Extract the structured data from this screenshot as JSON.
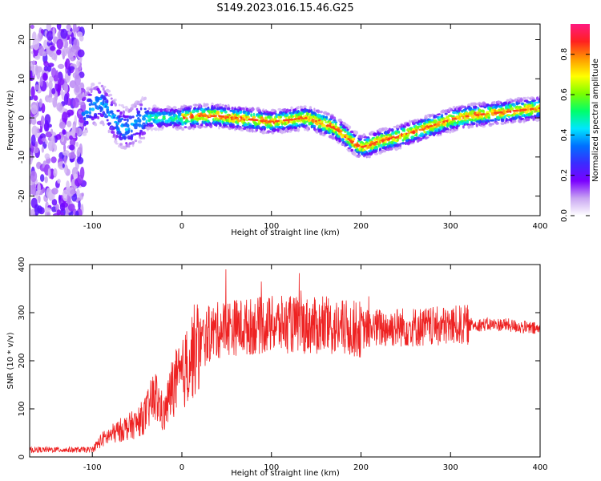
{
  "title": "S149.2023.016.15.46.G25",
  "colorbar": {
    "label": "Normalized spectral amplitude",
    "ticks": [
      "0.0",
      "0.2",
      "0.4",
      "0.6",
      "0.8"
    ],
    "tick_values": [
      0.0,
      0.2,
      0.4,
      0.6,
      0.8
    ],
    "range": [
      0,
      0.95
    ],
    "colors": [
      "#ffffff",
      "#c9a6f2",
      "#7a00ff",
      "#3b2bff",
      "#0070ff",
      "#00e6ff",
      "#00ff6a",
      "#7cff00",
      "#ffff00",
      "#ff9900",
      "#ff2020",
      "#ff1a80"
    ]
  },
  "chart_data": [
    {
      "type": "heatmap",
      "xlabel": "Height of straight line (km)",
      "ylabel": "Frequency (Hz)",
      "xlim": [
        -170,
        400
      ],
      "ylim": [
        -25,
        24
      ],
      "xticks": [
        -100,
        0,
        100,
        200,
        300,
        400
      ],
      "yticks": [
        -20,
        -10,
        0,
        10,
        20
      ],
      "ridge": {
        "x": [
          -110,
          -100,
          -90,
          -80,
          -70,
          -60,
          -50,
          -40,
          -30,
          -20,
          -10,
          0,
          20,
          40,
          60,
          80,
          100,
          120,
          140,
          160,
          170,
          180,
          190,
          200,
          210,
          220,
          240,
          260,
          280,
          300,
          320,
          340,
          360,
          380,
          400
        ],
        "y": [
          1,
          3,
          4,
          1,
          -2,
          -3,
          -1,
          0,
          0,
          0,
          0,
          0,
          0.5,
          0.5,
          0,
          -0.5,
          -1,
          -0.5,
          0,
          -1.5,
          -2.5,
          -4,
          -6,
          -7.5,
          -7,
          -6,
          -5,
          -3.5,
          -2,
          -0.5,
          0.5,
          1,
          1.5,
          2,
          2.5
        ]
      },
      "noise_region_x": [
        -170,
        -110
      ]
    },
    {
      "type": "line",
      "xlabel": "Height of straight line (km)",
      "ylabel": "SNR (10 * v/v)",
      "xlim": [
        -170,
        400
      ],
      "ylim": [
        0,
        400
      ],
      "xticks": [
        -100,
        0,
        100,
        200,
        300,
        400
      ],
      "yticks": [
        0,
        100,
        200,
        300,
        400
      ],
      "color": "#ee2222",
      "envelope": {
        "x": [
          -170,
          -100,
          -90,
          -70,
          -50,
          -40,
          -30,
          -20,
          -10,
          0,
          10,
          20,
          30,
          50,
          70,
          100,
          130,
          160,
          200,
          240,
          280,
          320,
          360,
          400
        ],
        "y": [
          15,
          15,
          35,
          55,
          70,
          90,
          130,
          85,
          150,
          165,
          210,
          235,
          255,
          270,
          270,
          275,
          275,
          270,
          265,
          270,
          270,
          275,
          275,
          265
        ]
      }
    }
  ]
}
